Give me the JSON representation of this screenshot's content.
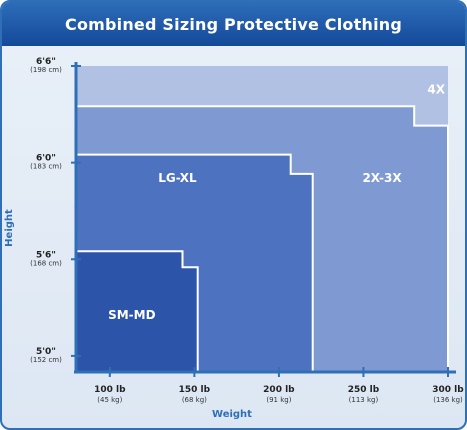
{
  "chart_data": {
    "type": "area",
    "title": "Combined Sizing Protective Clothing",
    "xlabel": "Weight",
    "ylabel": "Height",
    "x_unit": "lb",
    "y_unit": "in",
    "xlim": [
      80,
      300
    ],
    "ylim": [
      59,
      78
    ],
    "x_ticks": [
      {
        "value": 100,
        "label": "100 lb",
        "sublabel": "(45 kg)"
      },
      {
        "value": 150,
        "label": "150 lb",
        "sublabel": "(68 kg)"
      },
      {
        "value": 200,
        "label": "200 lb",
        "sublabel": "(91 kg)"
      },
      {
        "value": 250,
        "label": "250 lb",
        "sublabel": "(113 kg)"
      },
      {
        "value": 300,
        "label": "300 lb",
        "sublabel": "(136 kg)"
      }
    ],
    "y_ticks": [
      {
        "value": 60,
        "label": "5'0\"",
        "sublabel": "(152 cm)"
      },
      {
        "value": 66,
        "label": "5'6\"",
        "sublabel": "(168 cm)"
      },
      {
        "value": 72,
        "label": "6'0\"",
        "sublabel": "(183 cm)"
      },
      {
        "value": 78,
        "label": "6'6\"",
        "sublabel": "(198 cm)"
      }
    ],
    "regions": [
      {
        "name": "4X",
        "color": "#b0c1e3",
        "outline": [
          [
            80,
            59
          ],
          [
            80,
            78
          ],
          [
            300,
            78
          ],
          [
            300,
            59
          ]
        ],
        "label_at": [
          293,
          76.3
        ]
      },
      {
        "name": "2X-3X",
        "color": "#7f9ad3",
        "outline": [
          [
            80,
            59
          ],
          [
            80,
            75.5
          ],
          [
            280,
            75.5
          ],
          [
            280,
            74.3
          ],
          [
            300,
            74.3
          ],
          [
            300,
            59
          ]
        ],
        "label_at": [
          261,
          70.8
        ]
      },
      {
        "name": "LG-XL",
        "color": "#4d73c0",
        "outline": [
          [
            80,
            59
          ],
          [
            80,
            72.5
          ],
          [
            207,
            72.5
          ],
          [
            207,
            71.3
          ],
          [
            220,
            71.3
          ],
          [
            220,
            59
          ]
        ],
        "label_at": [
          140,
          70.8
        ]
      },
      {
        "name": "SM-MD",
        "color": "#2c54a8",
        "outline": [
          [
            80,
            59
          ],
          [
            80,
            66.5
          ],
          [
            143,
            66.5
          ],
          [
            143,
            65.5
          ],
          [
            152,
            65.5
          ],
          [
            152,
            59
          ]
        ],
        "label_at": [
          113,
          62.3
        ]
      }
    ]
  }
}
